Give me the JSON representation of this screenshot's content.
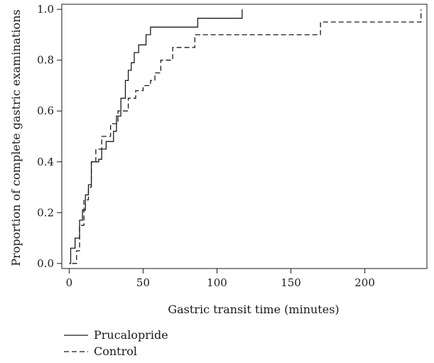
{
  "chart_data": {
    "type": "line",
    "step": true,
    "title": "",
    "xlabel": "Gastric transit time (minutes)",
    "ylabel": "Proportion of complete gastric examinations",
    "xlim": [
      -5,
      242
    ],
    "ylim": [
      -0.02,
      1.02
    ],
    "xticks": [
      0,
      50,
      100,
      150,
      200
    ],
    "yticks": [
      0.0,
      0.2,
      0.4,
      0.6,
      0.8,
      1.0
    ],
    "xtick_labels": [
      "0",
      "50",
      "100",
      "150",
      "200"
    ],
    "ytick_labels": [
      "0.0",
      "0.2",
      "0.4",
      "0.6",
      "0.8",
      "1.0"
    ],
    "grid": false,
    "legend_position": "bottom-left",
    "series": [
      {
        "name": "Prucalopride",
        "style": "solid",
        "color": "#1a1a1a",
        "x": [
          0,
          1,
          4,
          7,
          9,
          11,
          13,
          15,
          20,
          22,
          25,
          30,
          32,
          35,
          38,
          40,
          42,
          44,
          47,
          52,
          55,
          58,
          60,
          63,
          87,
          117
        ],
        "y": [
          0.0,
          0.06,
          0.1,
          0.17,
          0.21,
          0.27,
          0.31,
          0.4,
          0.41,
          0.45,
          0.48,
          0.52,
          0.58,
          0.65,
          0.72,
          0.76,
          0.79,
          0.83,
          0.86,
          0.9,
          0.93,
          0.93,
          0.93,
          0.93,
          0.965,
          1.0
        ]
      },
      {
        "name": "Control",
        "style": "dashed",
        "color": "#1a1a1a",
        "x": [
          2,
          5,
          7,
          10,
          13,
          15,
          18,
          22,
          28,
          33,
          40,
          45,
          50,
          55,
          58,
          62,
          65,
          70,
          75,
          85,
          170,
          238
        ],
        "y": [
          0.0,
          0.05,
          0.15,
          0.25,
          0.3,
          0.4,
          0.45,
          0.5,
          0.55,
          0.6,
          0.65,
          0.68,
          0.7,
          0.72,
          0.75,
          0.8,
          0.8,
          0.85,
          0.85,
          0.9,
          0.95,
          1.0
        ]
      }
    ]
  }
}
